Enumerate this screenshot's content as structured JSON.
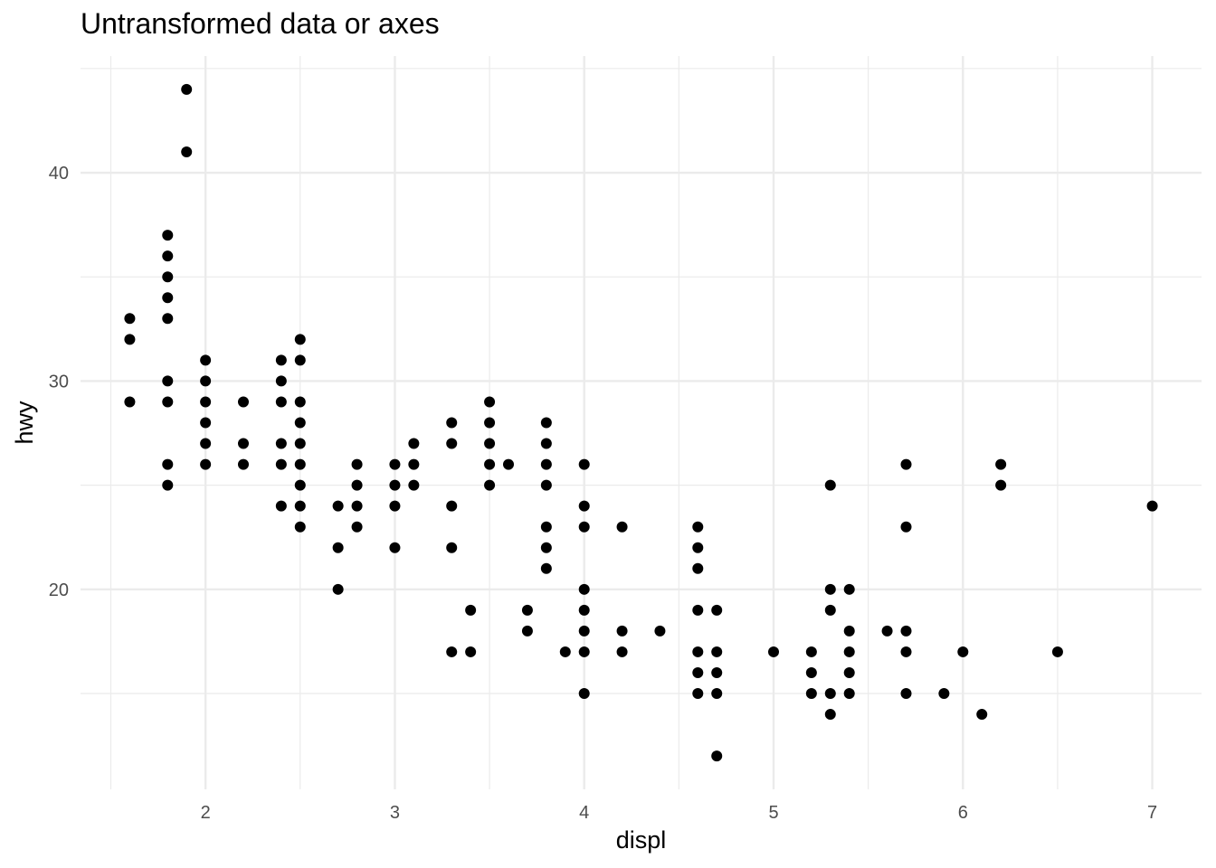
{
  "chart_data": {
    "type": "scatter",
    "title": "Untransformed data or axes",
    "xlabel": "displ",
    "ylabel": "hwy",
    "xlim": [
      1.34,
      7.26
    ],
    "ylim": [
      10.4,
      45.6
    ],
    "x_ticks": [
      2,
      3,
      4,
      5,
      6,
      7
    ],
    "y_ticks": [
      20,
      30,
      40
    ],
    "grid": true,
    "point_color": "#000000",
    "points": [
      {
        "x": 1.6,
        "y": 33
      },
      {
        "x": 1.6,
        "y": 32
      },
      {
        "x": 1.6,
        "y": 29
      },
      {
        "x": 1.8,
        "y": 37
      },
      {
        "x": 1.8,
        "y": 36
      },
      {
        "x": 1.8,
        "y": 35
      },
      {
        "x": 1.8,
        "y": 34
      },
      {
        "x": 1.8,
        "y": 33
      },
      {
        "x": 1.8,
        "y": 30
      },
      {
        "x": 1.8,
        "y": 29
      },
      {
        "x": 1.8,
        "y": 26
      },
      {
        "x": 1.8,
        "y": 25
      },
      {
        "x": 1.9,
        "y": 44
      },
      {
        "x": 1.9,
        "y": 41
      },
      {
        "x": 2.0,
        "y": 31
      },
      {
        "x": 2.0,
        "y": 30
      },
      {
        "x": 2.0,
        "y": 29
      },
      {
        "x": 2.0,
        "y": 28
      },
      {
        "x": 2.0,
        "y": 27
      },
      {
        "x": 2.0,
        "y": 26
      },
      {
        "x": 2.2,
        "y": 29
      },
      {
        "x": 2.2,
        "y": 27
      },
      {
        "x": 2.2,
        "y": 26
      },
      {
        "x": 2.4,
        "y": 31
      },
      {
        "x": 2.4,
        "y": 30
      },
      {
        "x": 2.4,
        "y": 29
      },
      {
        "x": 2.4,
        "y": 27
      },
      {
        "x": 2.4,
        "y": 26
      },
      {
        "x": 2.4,
        "y": 24
      },
      {
        "x": 2.5,
        "y": 32
      },
      {
        "x": 2.5,
        "y": 31
      },
      {
        "x": 2.5,
        "y": 29
      },
      {
        "x": 2.5,
        "y": 28
      },
      {
        "x": 2.5,
        "y": 27
      },
      {
        "x": 2.5,
        "y": 26
      },
      {
        "x": 2.5,
        "y": 25
      },
      {
        "x": 2.5,
        "y": 24
      },
      {
        "x": 2.5,
        "y": 23
      },
      {
        "x": 2.7,
        "y": 24
      },
      {
        "x": 2.7,
        "y": 22
      },
      {
        "x": 2.7,
        "y": 20
      },
      {
        "x": 2.8,
        "y": 26
      },
      {
        "x": 2.8,
        "y": 25
      },
      {
        "x": 2.8,
        "y": 24
      },
      {
        "x": 2.8,
        "y": 23
      },
      {
        "x": 3.0,
        "y": 26
      },
      {
        "x": 3.0,
        "y": 25
      },
      {
        "x": 3.0,
        "y": 24
      },
      {
        "x": 3.0,
        "y": 22
      },
      {
        "x": 3.1,
        "y": 27
      },
      {
        "x": 3.1,
        "y": 26
      },
      {
        "x": 3.1,
        "y": 25
      },
      {
        "x": 3.3,
        "y": 28
      },
      {
        "x": 3.3,
        "y": 27
      },
      {
        "x": 3.3,
        "y": 24
      },
      {
        "x": 3.3,
        "y": 22
      },
      {
        "x": 3.3,
        "y": 17
      },
      {
        "x": 3.4,
        "y": 19
      },
      {
        "x": 3.4,
        "y": 17
      },
      {
        "x": 3.5,
        "y": 29
      },
      {
        "x": 3.5,
        "y": 28
      },
      {
        "x": 3.5,
        "y": 27
      },
      {
        "x": 3.5,
        "y": 26
      },
      {
        "x": 3.5,
        "y": 25
      },
      {
        "x": 3.6,
        "y": 26
      },
      {
        "x": 3.7,
        "y": 19
      },
      {
        "x": 3.7,
        "y": 18
      },
      {
        "x": 3.8,
        "y": 28
      },
      {
        "x": 3.8,
        "y": 27
      },
      {
        "x": 3.8,
        "y": 26
      },
      {
        "x": 3.8,
        "y": 25
      },
      {
        "x": 3.8,
        "y": 23
      },
      {
        "x": 3.8,
        "y": 22
      },
      {
        "x": 3.8,
        "y": 21
      },
      {
        "x": 3.9,
        "y": 17
      },
      {
        "x": 4.0,
        "y": 26
      },
      {
        "x": 4.0,
        "y": 24
      },
      {
        "x": 4.0,
        "y": 23
      },
      {
        "x": 4.0,
        "y": 20
      },
      {
        "x": 4.0,
        "y": 19
      },
      {
        "x": 4.0,
        "y": 18
      },
      {
        "x": 4.0,
        "y": 17
      },
      {
        "x": 4.0,
        "y": 15
      },
      {
        "x": 4.2,
        "y": 23
      },
      {
        "x": 4.2,
        "y": 18
      },
      {
        "x": 4.2,
        "y": 17
      },
      {
        "x": 4.4,
        "y": 18
      },
      {
        "x": 4.6,
        "y": 23
      },
      {
        "x": 4.6,
        "y": 22
      },
      {
        "x": 4.6,
        "y": 21
      },
      {
        "x": 4.6,
        "y": 19
      },
      {
        "x": 4.6,
        "y": 17
      },
      {
        "x": 4.6,
        "y": 16
      },
      {
        "x": 4.6,
        "y": 15
      },
      {
        "x": 4.7,
        "y": 19
      },
      {
        "x": 4.7,
        "y": 17
      },
      {
        "x": 4.7,
        "y": 16
      },
      {
        "x": 4.7,
        "y": 15
      },
      {
        "x": 4.7,
        "y": 12
      },
      {
        "x": 5.0,
        "y": 17
      },
      {
        "x": 5.2,
        "y": 17
      },
      {
        "x": 5.2,
        "y": 16
      },
      {
        "x": 5.2,
        "y": 15
      },
      {
        "x": 5.3,
        "y": 25
      },
      {
        "x": 5.3,
        "y": 20
      },
      {
        "x": 5.3,
        "y": 19
      },
      {
        "x": 5.3,
        "y": 15
      },
      {
        "x": 5.3,
        "y": 14
      },
      {
        "x": 5.4,
        "y": 20
      },
      {
        "x": 5.4,
        "y": 18
      },
      {
        "x": 5.4,
        "y": 17
      },
      {
        "x": 5.4,
        "y": 16
      },
      {
        "x": 5.4,
        "y": 15
      },
      {
        "x": 5.6,
        "y": 18
      },
      {
        "x": 5.7,
        "y": 26
      },
      {
        "x": 5.7,
        "y": 23
      },
      {
        "x": 5.7,
        "y": 18
      },
      {
        "x": 5.7,
        "y": 17
      },
      {
        "x": 5.7,
        "y": 15
      },
      {
        "x": 5.9,
        "y": 15
      },
      {
        "x": 6.0,
        "y": 17
      },
      {
        "x": 6.1,
        "y": 14
      },
      {
        "x": 6.2,
        "y": 26
      },
      {
        "x": 6.2,
        "y": 25
      },
      {
        "x": 6.5,
        "y": 17
      },
      {
        "x": 7.0,
        "y": 24
      }
    ]
  }
}
